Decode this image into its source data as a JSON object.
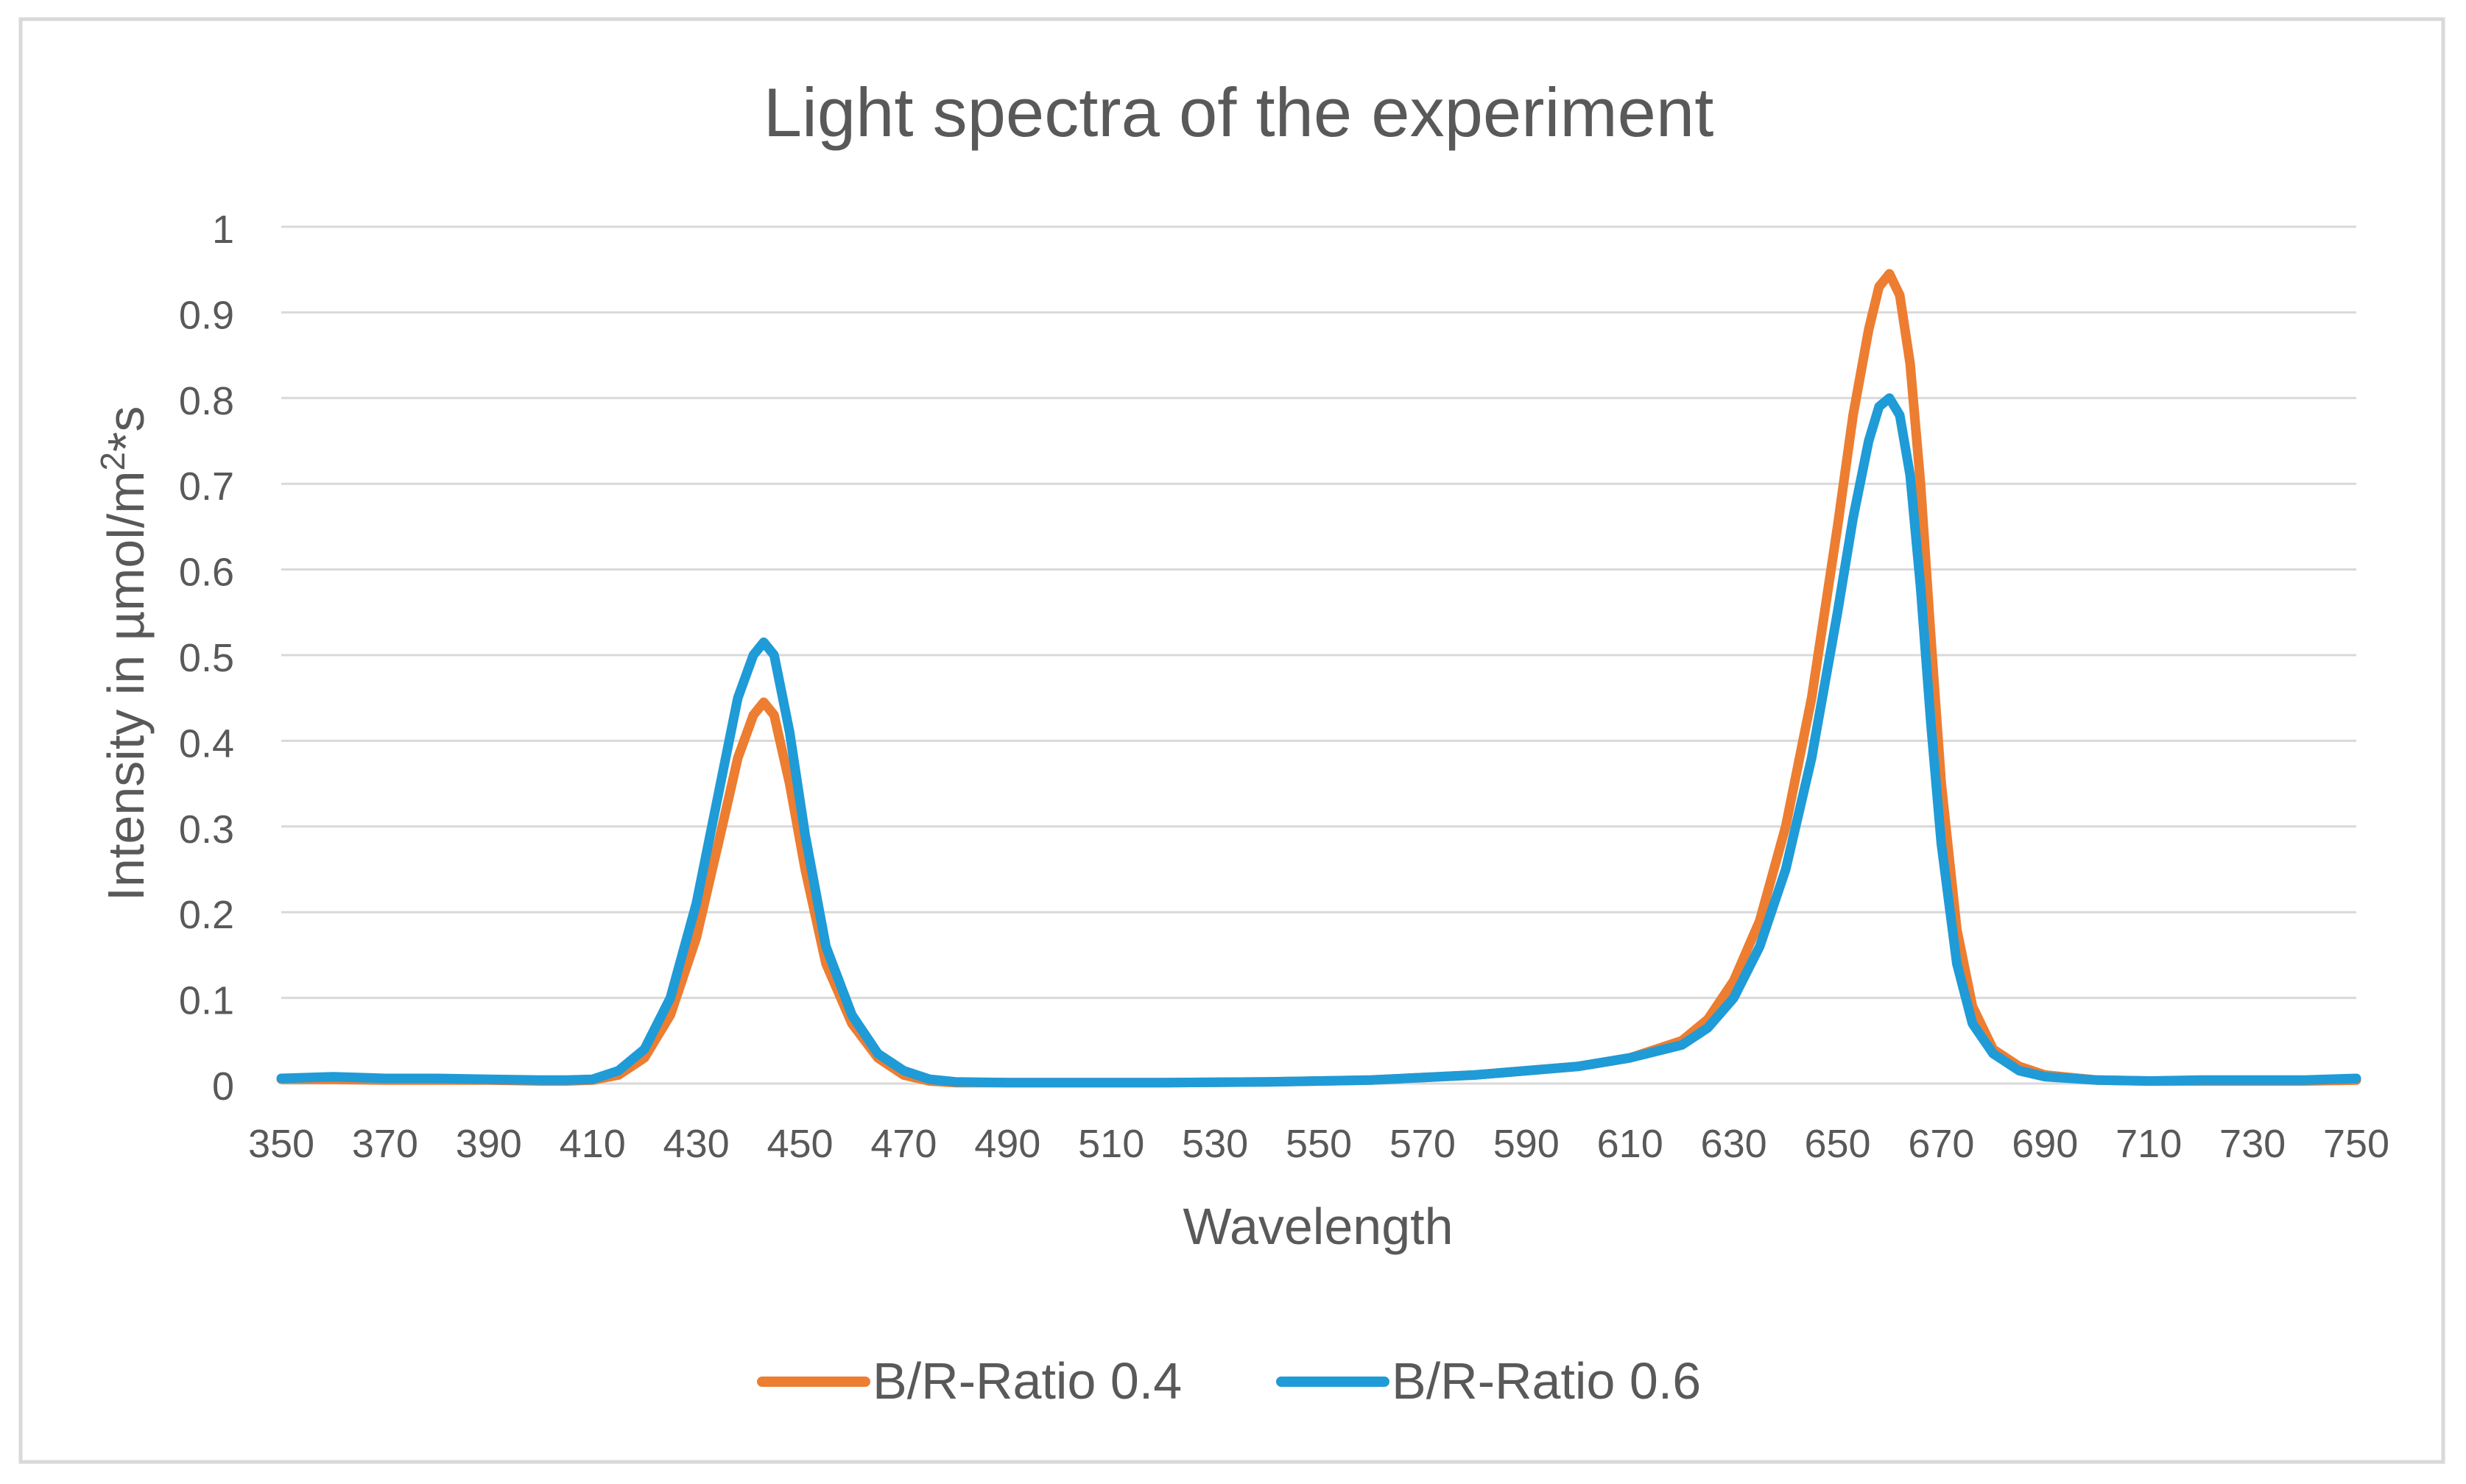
{
  "chart_data": {
    "type": "line",
    "title": "Light spectra of the experiment",
    "xlabel": "Wavelength",
    "ylabel_main": "Intensity in µmol/m",
    "ylabel_sup": "2",
    "ylabel_tail": "*s",
    "xlim": [
      350,
      750
    ],
    "ylim": [
      0,
      1
    ],
    "x_ticks": [
      350,
      370,
      390,
      410,
      430,
      450,
      470,
      490,
      510,
      530,
      550,
      570,
      590,
      610,
      630,
      650,
      670,
      690,
      710,
      730,
      750
    ],
    "y_ticks": [
      0,
      0.1,
      0.2,
      0.3,
      0.4,
      0.5,
      0.6,
      0.7,
      0.8,
      0.9,
      1
    ],
    "y_tick_labels": [
      "0",
      "0.1",
      "0.2",
      "0.3",
      "0.4",
      "0.5",
      "0.6",
      "0.7",
      "0.8",
      "0.9",
      "1"
    ],
    "grid": true,
    "legend_position": "bottom-center",
    "series": [
      {
        "name": "B/R-Ratio 0.4",
        "color": "#ED7D31",
        "x": [
          350,
          360,
          370,
          380,
          390,
          400,
          405,
          410,
          415,
          420,
          425,
          430,
          435,
          438,
          441,
          443,
          445,
          448,
          451,
          455,
          460,
          465,
          470,
          475,
          480,
          490,
          500,
          520,
          540,
          560,
          580,
          600,
          610,
          620,
          625,
          630,
          635,
          640,
          645,
          650,
          653,
          656,
          658,
          660,
          662,
          664,
          666,
          668,
          670,
          673,
          676,
          680,
          685,
          690,
          700,
          710,
          720,
          730,
          740,
          750
        ],
        "values": [
          0.005,
          0.005,
          0.004,
          0.004,
          0.004,
          0.003,
          0.003,
          0.004,
          0.01,
          0.03,
          0.08,
          0.17,
          0.3,
          0.38,
          0.43,
          0.445,
          0.43,
          0.35,
          0.25,
          0.14,
          0.07,
          0.03,
          0.01,
          0.003,
          0.001,
          0.001,
          0.001,
          0.001,
          0.002,
          0.004,
          0.01,
          0.02,
          0.03,
          0.05,
          0.075,
          0.12,
          0.19,
          0.3,
          0.45,
          0.65,
          0.78,
          0.88,
          0.93,
          0.945,
          0.92,
          0.84,
          0.7,
          0.52,
          0.35,
          0.18,
          0.09,
          0.04,
          0.02,
          0.01,
          0.004,
          0.003,
          0.003,
          0.003,
          0.003,
          0.004
        ]
      },
      {
        "name": "B/R-Ratio 0.6",
        "color": "#1F9BD7",
        "x": [
          350,
          360,
          370,
          380,
          390,
          400,
          405,
          410,
          415,
          420,
          425,
          430,
          435,
          438,
          441,
          443,
          445,
          448,
          451,
          455,
          460,
          465,
          470,
          475,
          480,
          490,
          500,
          520,
          540,
          560,
          580,
          600,
          610,
          620,
          625,
          630,
          635,
          640,
          645,
          650,
          653,
          656,
          658,
          660,
          662,
          664,
          666,
          668,
          670,
          673,
          676,
          680,
          685,
          690,
          700,
          710,
          720,
          730,
          740,
          750
        ],
        "values": [
          0.006,
          0.008,
          0.006,
          0.006,
          0.005,
          0.004,
          0.004,
          0.005,
          0.015,
          0.04,
          0.1,
          0.21,
          0.36,
          0.45,
          0.5,
          0.515,
          0.5,
          0.41,
          0.29,
          0.16,
          0.08,
          0.035,
          0.015,
          0.005,
          0.002,
          0.001,
          0.001,
          0.001,
          0.002,
          0.004,
          0.01,
          0.02,
          0.03,
          0.045,
          0.065,
          0.1,
          0.16,
          0.25,
          0.38,
          0.55,
          0.66,
          0.75,
          0.79,
          0.8,
          0.78,
          0.71,
          0.58,
          0.42,
          0.28,
          0.14,
          0.07,
          0.035,
          0.015,
          0.008,
          0.004,
          0.003,
          0.004,
          0.004,
          0.004,
          0.006
        ]
      }
    ]
  }
}
